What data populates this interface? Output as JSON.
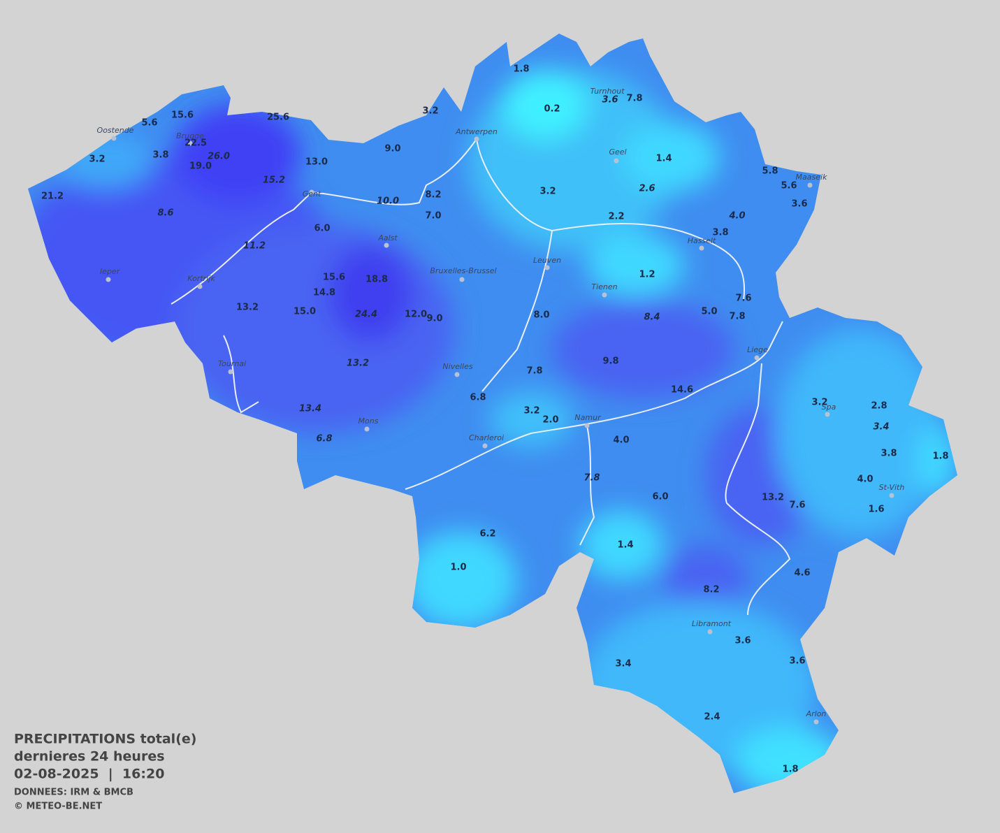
{
  "title": {
    "lines": [
      "PRECIPITATIONS total(e)",
      "dernieres 24 heures",
      "02-08-2025  |  16:20"
    ],
    "credits": [
      "DONNEES: IRM & BMCB",
      "© METEO-BE.NET"
    ]
  },
  "cities": [
    "Oostende",
    "Brugge",
    "Antwerpen",
    "Turnhout",
    "Geel",
    "Maaseik",
    "Gent",
    "Hasselt",
    "Aalst",
    "Leuven",
    "Ieper",
    "Bruxelles-Brussel",
    "Kortrijk",
    "Tienen",
    "Liege",
    "Tournai",
    "Nivelles",
    "Spa",
    "Namur",
    "Mons",
    "Charleroi",
    "St-Vith",
    "Libramont",
    "Arlon"
  ],
  "values": [
    "1.8",
    "0.2",
    "3.6",
    "7.8",
    "3.2",
    "5.6",
    "15.6",
    "25.6",
    "22.5",
    "26.0",
    "3.8",
    "3.2",
    "19.0",
    "13.0",
    "9.0",
    "1.4",
    "5.8",
    "5.6",
    "3.6",
    "15.2",
    "3.2",
    "2.6",
    "21.2",
    "10.0",
    "8.2",
    "7.0",
    "8.6",
    "2.2",
    "4.0",
    "6.0",
    "3.8",
    "11.2",
    "1.2",
    "18.8",
    "15.6",
    "14.8",
    "7.6",
    "13.2",
    "15.0",
    "24.4",
    "12.0",
    "9.0",
    "8.0",
    "8.4",
    "5.0",
    "7.8",
    "13.2",
    "9.8",
    "7.8",
    "14.6",
    "6.8",
    "3.2",
    "2.8",
    "3.2",
    "2.0",
    "13.4",
    "3.4",
    "6.8",
    "4.0",
    "3.8",
    "1.8",
    "4.0",
    "7.8",
    "13.2",
    "6.0",
    "7.6",
    "1.6",
    "6.2",
    "1.4",
    "1.0",
    "4.6",
    "8.2",
    "3.6",
    "3.4",
    "3.6",
    "2.4",
    "1.8"
  ]
}
